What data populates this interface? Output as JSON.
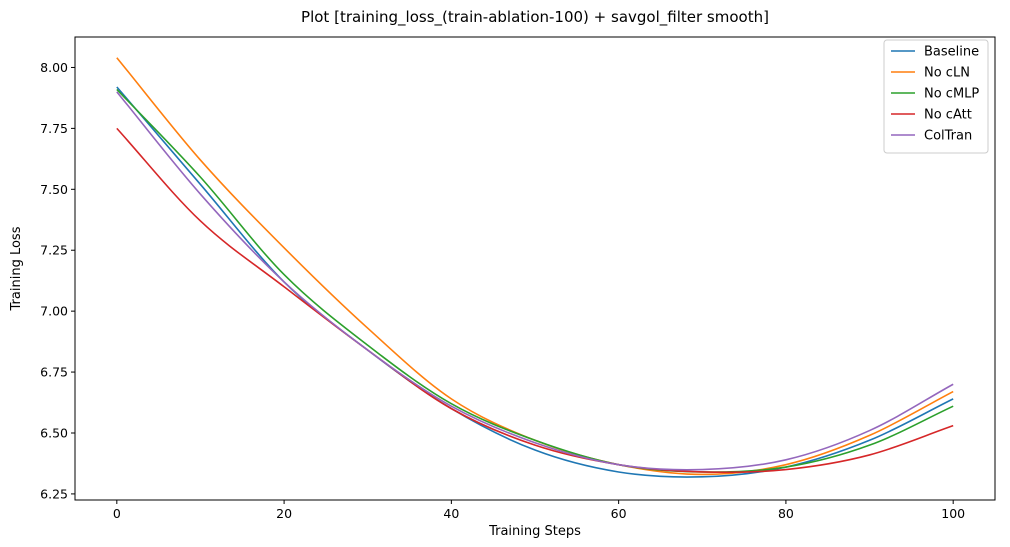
{
  "chart_data": {
    "type": "line",
    "title": "Plot [training_loss_(train-ablation-100) + savgol_filter smooth]",
    "xlabel": "Training Steps",
    "ylabel": "Training Loss",
    "xlim": [
      -5,
      105
    ],
    "ylim": [
      6.225,
      8.125
    ],
    "xticks": [
      0,
      20,
      40,
      60,
      80,
      100
    ],
    "xtick_labels": [
      "0",
      "20",
      "40",
      "60",
      "80",
      "100"
    ],
    "yticks": [
      6.25,
      6.5,
      6.75,
      7.0,
      7.25,
      7.5,
      7.75,
      8.0
    ],
    "ytick_labels": [
      "6.25",
      "6.50",
      "6.75",
      "7.00",
      "7.25",
      "7.50",
      "7.75",
      "8.00"
    ],
    "grid": false,
    "legend_position": "top-right",
    "x": [
      0,
      10,
      20,
      30,
      40,
      50,
      60,
      70,
      80,
      90,
      100
    ],
    "series": [
      {
        "name": "Baseline",
        "color": "#1f77b4",
        "values": [
          7.92,
          7.52,
          7.12,
          6.84,
          6.6,
          6.43,
          6.34,
          6.32,
          6.36,
          6.47,
          6.64
        ]
      },
      {
        "name": "No cLN",
        "color": "#ff7f0e",
        "values": [
          8.04,
          7.62,
          7.26,
          6.93,
          6.64,
          6.47,
          6.37,
          6.33,
          6.37,
          6.49,
          6.67
        ]
      },
      {
        "name": "No cMLP",
        "color": "#2ca02c",
        "values": [
          7.91,
          7.55,
          7.15,
          6.86,
          6.62,
          6.47,
          6.37,
          6.34,
          6.36,
          6.45,
          6.61
        ]
      },
      {
        "name": "No cAtt",
        "color": "#d62728",
        "values": [
          7.75,
          7.37,
          7.1,
          6.84,
          6.6,
          6.45,
          6.37,
          6.34,
          6.35,
          6.41,
          6.53
        ]
      },
      {
        "name": "ColTran",
        "color": "#9467bd",
        "values": [
          7.9,
          7.48,
          7.12,
          6.84,
          6.61,
          6.46,
          6.37,
          6.35,
          6.39,
          6.51,
          6.7
        ]
      }
    ]
  }
}
